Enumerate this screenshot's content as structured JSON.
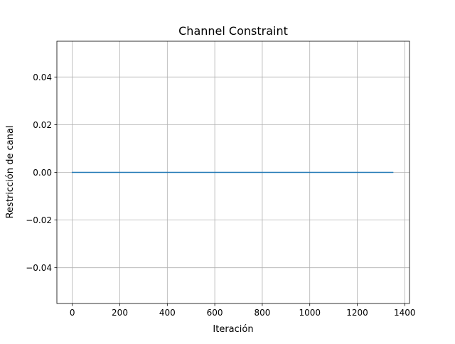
{
  "chart_data": {
    "type": "line",
    "title": "Channel Constraint",
    "xlabel": "Iteración",
    "ylabel": "Restricción de canal",
    "xlim": [
      -65,
      1420
    ],
    "ylim": [
      -0.055,
      0.055
    ],
    "xticks": [
      0,
      200,
      400,
      600,
      800,
      1000,
      1200,
      1400
    ],
    "xtick_labels": [
      "0",
      "200",
      "400",
      "600",
      "800",
      "1000",
      "1200",
      "1400"
    ],
    "yticks": [
      -0.04,
      -0.02,
      0.0,
      0.02,
      0.04
    ],
    "ytick_labels": [
      "−0.04",
      "−0.02",
      "0.00",
      "0.02",
      "0.04"
    ],
    "grid": true,
    "legend": "none",
    "series": [
      {
        "color": "#1f77b4",
        "x": [
          0,
          1350
        ],
        "y": [
          0.0,
          0.0
        ]
      }
    ]
  }
}
